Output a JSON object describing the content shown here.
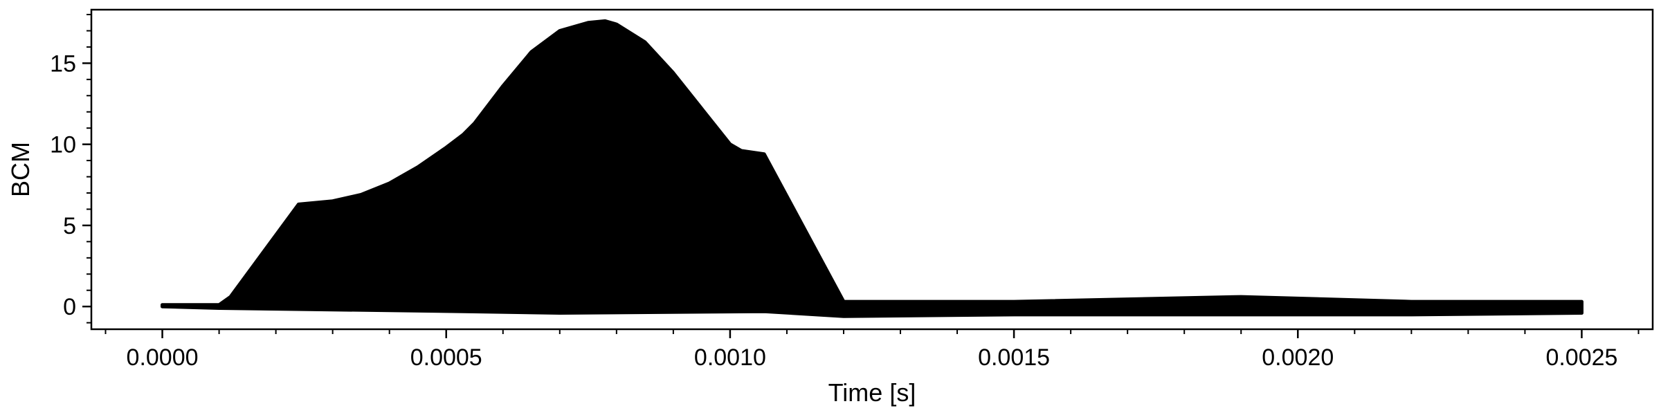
{
  "chart_data": {
    "type": "area",
    "title": "",
    "xlabel": "Time [s]",
    "ylabel": "BCM",
    "xlim": [
      -0.000125,
      0.002625
    ],
    "ylim": [
      -1.4,
      18.3
    ],
    "x_ticks": [
      0.0,
      0.0005,
      0.001,
      0.0015,
      0.002,
      0.0025
    ],
    "x_tick_labels": [
      "0.0000",
      "0.0005",
      "0.0010",
      "0.0015",
      "0.0020",
      "0.0025"
    ],
    "y_ticks": [
      0,
      5,
      10,
      15
    ],
    "y_tick_labels": [
      "0",
      "5",
      "10",
      "15"
    ],
    "grid": false,
    "legend": "none",
    "series_color": "#000000",
    "upper_envelope": {
      "x": [
        0.0,
        0.0001,
        0.00012,
        0.00024,
        0.0003,
        0.00035,
        0.0004,
        0.00045,
        0.0005,
        0.00053,
        0.00055,
        0.0006,
        0.00065,
        0.0007,
        0.00075,
        0.00078,
        0.0008,
        0.00085,
        0.0009,
        0.00095,
        0.001,
        0.00102,
        0.00106,
        0.0012,
        0.0015,
        0.0019,
        0.0022,
        0.0025
      ],
      "y": [
        0.1,
        0.1,
        0.6,
        6.3,
        6.5,
        6.9,
        7.6,
        8.6,
        9.8,
        10.6,
        11.3,
        13.6,
        15.7,
        17.0,
        17.5,
        17.6,
        17.4,
        16.3,
        14.4,
        12.2,
        10.0,
        9.6,
        9.4,
        0.3,
        0.3,
        0.6,
        0.3,
        0.3
      ]
    },
    "lower_envelope": {
      "x": [
        0.0,
        0.0001,
        0.00053,
        0.0007,
        0.00106,
        0.0012,
        0.0015,
        0.0019,
        0.0022,
        0.0025
      ],
      "y": [
        0.0,
        -0.1,
        -0.3,
        -0.4,
        -0.3,
        -0.6,
        -0.5,
        -0.5,
        -0.5,
        -0.4
      ]
    }
  }
}
